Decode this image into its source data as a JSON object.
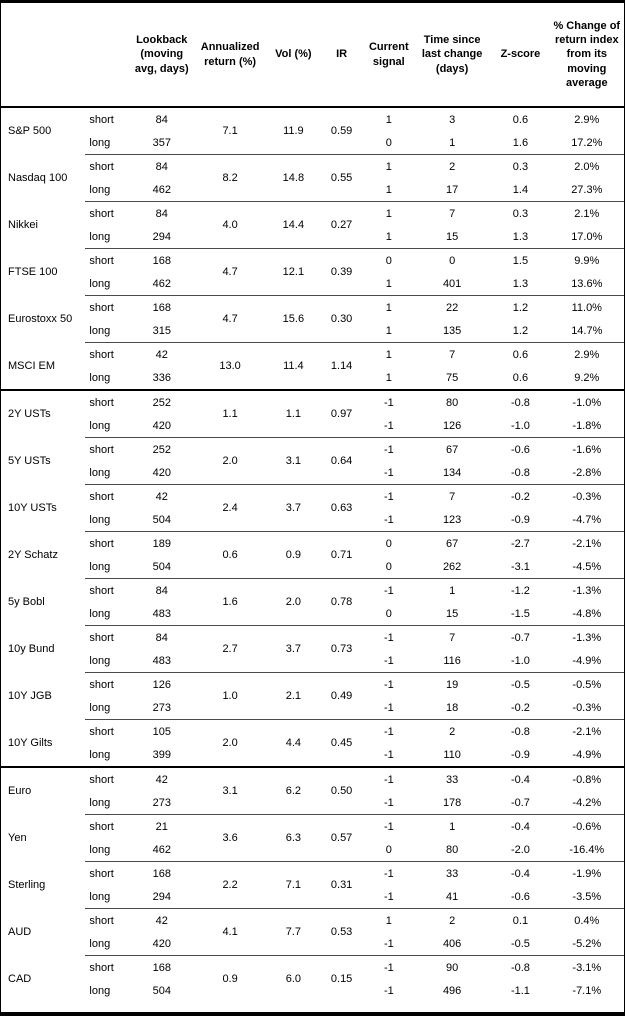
{
  "table": {
    "columns": {
      "asset": "",
      "horizon": "",
      "lookback": "Lookback (moving avg, days)",
      "annualized_return": "Annualized return (%)",
      "vol": "Vol (%)",
      "ir": "IR",
      "current_signal": "Current signal",
      "time_since": "Time since last change (days)",
      "z_score": "Z-score",
      "pct_change": "% Change of return index from its moving average"
    },
    "horizon_labels": {
      "short": "short",
      "long": "long"
    },
    "groups": [
      {
        "asset": "S&P 500",
        "section_start": false,
        "annualized_return": "7.1",
        "vol": "11.9",
        "ir": "0.59",
        "short": {
          "lookback": "84",
          "signal": "1",
          "time": "3",
          "z": "0.6",
          "pct": "2.9%"
        },
        "long": {
          "lookback": "357",
          "signal": "0",
          "time": "1",
          "z": "1.6",
          "pct": "17.2%"
        }
      },
      {
        "asset": "Nasdaq 100",
        "section_start": false,
        "annualized_return": "8.2",
        "vol": "14.8",
        "ir": "0.55",
        "short": {
          "lookback": "84",
          "signal": "1",
          "time": "2",
          "z": "0.3",
          "pct": "2.0%"
        },
        "long": {
          "lookback": "462",
          "signal": "1",
          "time": "17",
          "z": "1.4",
          "pct": "27.3%"
        }
      },
      {
        "asset": "Nikkei",
        "section_start": false,
        "annualized_return": "4.0",
        "vol": "14.4",
        "ir": "0.27",
        "short": {
          "lookback": "84",
          "signal": "1",
          "time": "7",
          "z": "0.3",
          "pct": "2.1%"
        },
        "long": {
          "lookback": "294",
          "signal": "1",
          "time": "15",
          "z": "1.3",
          "pct": "17.0%"
        }
      },
      {
        "asset": "FTSE 100",
        "section_start": false,
        "annualized_return": "4.7",
        "vol": "12.1",
        "ir": "0.39",
        "short": {
          "lookback": "168",
          "signal": "0",
          "time": "0",
          "z": "1.5",
          "pct": "9.9%"
        },
        "long": {
          "lookback": "462",
          "signal": "1",
          "time": "401",
          "z": "1.3",
          "pct": "13.6%"
        }
      },
      {
        "asset": "Eurostoxx 50",
        "section_start": false,
        "annualized_return": "4.7",
        "vol": "15.6",
        "ir": "0.30",
        "short": {
          "lookback": "168",
          "signal": "1",
          "time": "22",
          "z": "1.2",
          "pct": "11.0%"
        },
        "long": {
          "lookback": "315",
          "signal": "1",
          "time": "135",
          "z": "1.2",
          "pct": "14.7%"
        }
      },
      {
        "asset": "MSCI EM",
        "section_start": false,
        "annualized_return": "13.0",
        "vol": "11.4",
        "ir": "1.14",
        "short": {
          "lookback": "42",
          "signal": "1",
          "time": "7",
          "z": "0.6",
          "pct": "2.9%"
        },
        "long": {
          "lookback": "336",
          "signal": "1",
          "time": "75",
          "z": "0.6",
          "pct": "9.2%"
        }
      },
      {
        "asset": "2Y USTs",
        "section_start": true,
        "annualized_return": "1.1",
        "vol": "1.1",
        "ir": "0.97",
        "short": {
          "lookback": "252",
          "signal": "-1",
          "time": "80",
          "z": "-0.8",
          "pct": "-1.0%"
        },
        "long": {
          "lookback": "420",
          "signal": "-1",
          "time": "126",
          "z": "-1.0",
          "pct": "-1.8%"
        }
      },
      {
        "asset": "5Y USTs",
        "section_start": false,
        "annualized_return": "2.0",
        "vol": "3.1",
        "ir": "0.64",
        "short": {
          "lookback": "252",
          "signal": "-1",
          "time": "67",
          "z": "-0.6",
          "pct": "-1.6%"
        },
        "long": {
          "lookback": "420",
          "signal": "-1",
          "time": "134",
          "z": "-0.8",
          "pct": "-2.8%"
        }
      },
      {
        "asset": "10Y USTs",
        "section_start": false,
        "annualized_return": "2.4",
        "vol": "3.7",
        "ir": "0.63",
        "short": {
          "lookback": "42",
          "signal": "-1",
          "time": "7",
          "z": "-0.2",
          "pct": "-0.3%"
        },
        "long": {
          "lookback": "504",
          "signal": "-1",
          "time": "123",
          "z": "-0.9",
          "pct": "-4.7%"
        }
      },
      {
        "asset": "2Y Schatz",
        "section_start": false,
        "annualized_return": "0.6",
        "vol": "0.9",
        "ir": "0.71",
        "short": {
          "lookback": "189",
          "signal": "0",
          "time": "67",
          "z": "-2.7",
          "pct": "-2.1%"
        },
        "long": {
          "lookback": "504",
          "signal": "0",
          "time": "262",
          "z": "-3.1",
          "pct": "-4.5%"
        }
      },
      {
        "asset": "5y Bobl",
        "section_start": false,
        "annualized_return": "1.6",
        "vol": "2.0",
        "ir": "0.78",
        "short": {
          "lookback": "84",
          "signal": "-1",
          "time": "1",
          "z": "-1.2",
          "pct": "-1.3%"
        },
        "long": {
          "lookback": "483",
          "signal": "0",
          "time": "15",
          "z": "-1.5",
          "pct": "-4.8%"
        }
      },
      {
        "asset": "10y Bund",
        "section_start": false,
        "annualized_return": "2.7",
        "vol": "3.7",
        "ir": "0.73",
        "short": {
          "lookback": "84",
          "signal": "-1",
          "time": "7",
          "z": "-0.7",
          "pct": "-1.3%"
        },
        "long": {
          "lookback": "483",
          "signal": "-1",
          "time": "116",
          "z": "-1.0",
          "pct": "-4.9%"
        }
      },
      {
        "asset": "10Y JGB",
        "section_start": false,
        "annualized_return": "1.0",
        "vol": "2.1",
        "ir": "0.49",
        "short": {
          "lookback": "126",
          "signal": "-1",
          "time": "19",
          "z": "-0.5",
          "pct": "-0.5%"
        },
        "long": {
          "lookback": "273",
          "signal": "-1",
          "time": "18",
          "z": "-0.2",
          "pct": "-0.3%"
        }
      },
      {
        "asset": "10Y Gilts",
        "section_start": false,
        "annualized_return": "2.0",
        "vol": "4.4",
        "ir": "0.45",
        "short": {
          "lookback": "105",
          "signal": "-1",
          "time": "2",
          "z": "-0.8",
          "pct": "-2.1%"
        },
        "long": {
          "lookback": "399",
          "signal": "-1",
          "time": "110",
          "z": "-0.9",
          "pct": "-4.9%"
        }
      },
      {
        "asset": "Euro",
        "section_start": true,
        "annualized_return": "3.1",
        "vol": "6.2",
        "ir": "0.50",
        "short": {
          "lookback": "42",
          "signal": "-1",
          "time": "33",
          "z": "-0.4",
          "pct": "-0.8%"
        },
        "long": {
          "lookback": "273",
          "signal": "-1",
          "time": "178",
          "z": "-0.7",
          "pct": "-4.2%"
        }
      },
      {
        "asset": "Yen",
        "section_start": false,
        "annualized_return": "3.6",
        "vol": "6.3",
        "ir": "0.57",
        "short": {
          "lookback": "21",
          "signal": "-1",
          "time": "1",
          "z": "-0.4",
          "pct": "-0.6%"
        },
        "long": {
          "lookback": "462",
          "signal": "0",
          "time": "80",
          "z": "-2.0",
          "pct": "-16.4%"
        }
      },
      {
        "asset": "Sterling",
        "section_start": false,
        "annualized_return": "2.2",
        "vol": "7.1",
        "ir": "0.31",
        "short": {
          "lookback": "168",
          "signal": "-1",
          "time": "33",
          "z": "-0.4",
          "pct": "-1.9%"
        },
        "long": {
          "lookback": "294",
          "signal": "-1",
          "time": "41",
          "z": "-0.6",
          "pct": "-3.5%"
        }
      },
      {
        "asset": "AUD",
        "section_start": false,
        "annualized_return": "4.1",
        "vol": "7.7",
        "ir": "0.53",
        "short": {
          "lookback": "42",
          "signal": "1",
          "time": "2",
          "z": "0.1",
          "pct": "0.4%"
        },
        "long": {
          "lookback": "420",
          "signal": "-1",
          "time": "406",
          "z": "-0.5",
          "pct": "-5.2%"
        }
      },
      {
        "asset": "CAD",
        "section_start": false,
        "annualized_return": "0.9",
        "vol": "6.0",
        "ir": "0.15",
        "short": {
          "lookback": "168",
          "signal": "-1",
          "time": "90",
          "z": "-0.8",
          "pct": "-3.1%"
        },
        "long": {
          "lookback": "504",
          "signal": "-1",
          "time": "496",
          "z": "-1.1",
          "pct": "-7.1%"
        }
      }
    ]
  }
}
